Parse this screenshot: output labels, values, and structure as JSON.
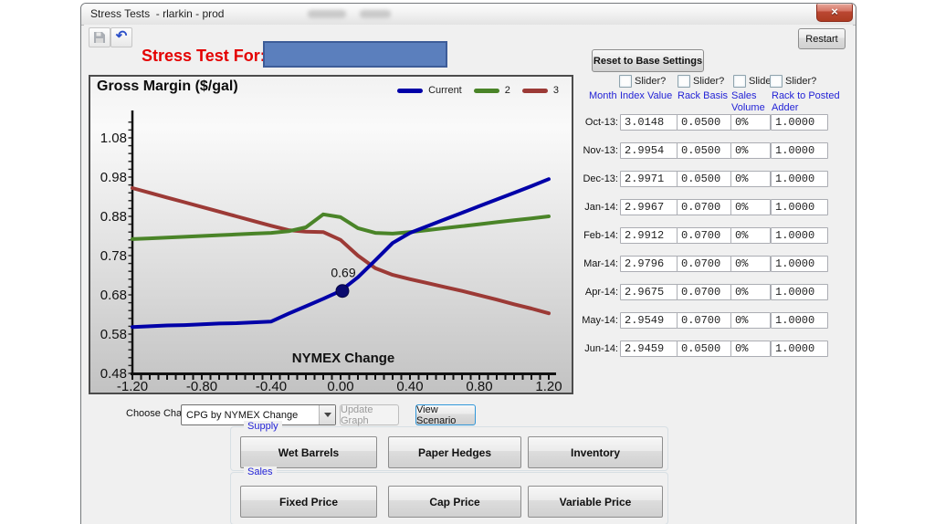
{
  "window": {
    "title": "Stress Tests  - rlarkin - prod",
    "close_glyph": "×"
  },
  "toolbar": {
    "restart": "Restart"
  },
  "header": {
    "stress_test_for": "Stress Test For:"
  },
  "chart_data": {
    "type": "line",
    "title": "Gross Margin ($/gal)",
    "xlabel": "NYMEX Change",
    "ylabel": "",
    "xlim": [
      -1.2,
      1.2
    ],
    "ylim": [
      0.48,
      1.145
    ],
    "xticks": [
      -1.2,
      -0.8,
      -0.4,
      0,
      0.4,
      0.8,
      1.2
    ],
    "yticks": [
      0.48,
      0.58,
      0.68,
      0.78,
      0.88,
      0.98,
      1.08
    ],
    "grid": false,
    "legend_position": "top-right",
    "annotation": {
      "label": "0.69",
      "x": 0,
      "y": 0.69,
      "series": "Current"
    },
    "x": [
      -1.2,
      -1.1,
      -1.0,
      -0.9,
      -0.8,
      -0.7,
      -0.6,
      -0.5,
      -0.4,
      -0.3,
      -0.2,
      -0.1,
      0.0,
      0.1,
      0.2,
      0.3,
      0.4,
      0.5,
      0.6,
      0.7,
      0.8,
      0.9,
      1.0,
      1.1,
      1.2
    ],
    "series": [
      {
        "name": "Current",
        "color": "#0000a8",
        "values": [
          0.598,
          0.6,
          0.602,
          0.603,
          0.605,
          0.607,
          0.608,
          0.61,
          0.612,
          0.632,
          0.651,
          0.67,
          0.69,
          0.725,
          0.768,
          0.812,
          0.838,
          0.855,
          0.872,
          0.889,
          0.906,
          0.923,
          0.94,
          0.957,
          0.975
        ]
      },
      {
        "name": "2",
        "color": "#4a8428",
        "values": [
          0.822,
          0.824,
          0.826,
          0.828,
          0.83,
          0.832,
          0.834,
          0.836,
          0.838,
          0.842,
          0.852,
          0.885,
          0.878,
          0.85,
          0.838,
          0.836,
          0.84,
          0.845,
          0.85,
          0.855,
          0.86,
          0.865,
          0.87,
          0.875,
          0.88
        ]
      },
      {
        "name": "3",
        "color": "#9c3a36",
        "values": [
          0.952,
          0.94,
          0.928,
          0.916,
          0.904,
          0.892,
          0.88,
          0.868,
          0.856,
          0.845,
          0.841,
          0.84,
          0.82,
          0.78,
          0.748,
          0.731,
          0.72,
          0.71,
          0.7,
          0.69,
          0.679,
          0.668,
          0.656,
          0.645,
          0.633
        ]
      }
    ]
  },
  "scenario_panel": {
    "reset_button": "Reset to Base Settings",
    "slider_checkboxes": [
      "Slider?",
      "Slider?",
      "Slider?",
      "Slider?"
    ],
    "columns": {
      "month": "Month",
      "index_value": "Index Value",
      "rack_basis": "Rack Basis",
      "sales_volume_line1": "Sales",
      "sales_volume_line2": "Volume",
      "adder_line1": "Rack to Posted",
      "adder_line2": "Adder"
    },
    "rows": [
      {
        "month": "Oct-13:",
        "index_value": "3.0148",
        "rack_basis": "0.0500",
        "sales_volume": "0%",
        "adder": "1.0000"
      },
      {
        "month": "Nov-13:",
        "index_value": "2.9954",
        "rack_basis": "0.0500",
        "sales_volume": "0%",
        "adder": "1.0000"
      },
      {
        "month": "Dec-13:",
        "index_value": "2.9971",
        "rack_basis": "0.0500",
        "sales_volume": "0%",
        "adder": "1.0000"
      },
      {
        "month": "Jan-14:",
        "index_value": "2.9967",
        "rack_basis": "0.0700",
        "sales_volume": "0%",
        "adder": "1.0000"
      },
      {
        "month": "Feb-14:",
        "index_value": "2.9912",
        "rack_basis": "0.0700",
        "sales_volume": "0%",
        "adder": "1.0000"
      },
      {
        "month": "Mar-14:",
        "index_value": "2.9796",
        "rack_basis": "0.0700",
        "sales_volume": "0%",
        "adder": "1.0000"
      },
      {
        "month": "Apr-14:",
        "index_value": "2.9675",
        "rack_basis": "0.0700",
        "sales_volume": "0%",
        "adder": "1.0000"
      },
      {
        "month": "May-14:",
        "index_value": "2.9549",
        "rack_basis": "0.0700",
        "sales_volume": "0%",
        "adder": "1.0000"
      },
      {
        "month": "Jun-14:",
        "index_value": "2.9459",
        "rack_basis": "0.0500",
        "sales_volume": "0%",
        "adder": "1.0000"
      }
    ]
  },
  "footer": {
    "choose_chart_label": "Choose Chart:",
    "chart_select_value": "CPG by NYMEX Change",
    "update_graph_button": "Update Graph",
    "view_scenario_button": "View Scenario",
    "supply_group": {
      "label": "Supply",
      "buttons": [
        "Wet Barrels",
        "Paper Hedges",
        "Inventory"
      ]
    },
    "sales_group": {
      "label": "Sales",
      "buttons": [
        "Fixed Price",
        "Cap Price",
        "Variable Price"
      ]
    }
  }
}
